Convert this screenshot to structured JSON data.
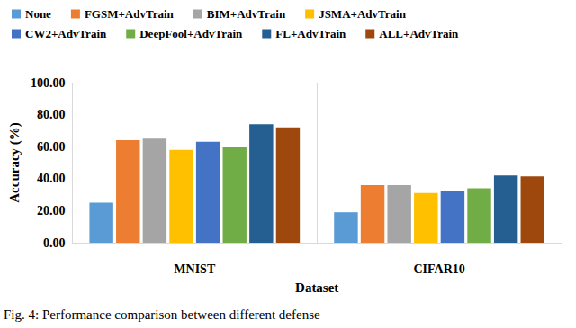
{
  "chart_data": {
    "type": "bar",
    "xlabel": "Dataset",
    "ylabel": "Accuracy (%)",
    "categories": [
      "MNIST",
      "CIFAR10"
    ],
    "series": [
      {
        "name": "None",
        "color": "#5B9BD5",
        "values": [
          25,
          19
        ]
      },
      {
        "name": "FGSM+AdvTrain",
        "color": "#ED7D31",
        "values": [
          64,
          36
        ]
      },
      {
        "name": "BIM+AdvTrain",
        "color": "#A5A5A5",
        "values": [
          65,
          36
        ]
      },
      {
        "name": "JSMA+AdvTrain",
        "color": "#FFC000",
        "values": [
          58,
          31
        ]
      },
      {
        "name": "CW2+AdvTrain",
        "color": "#4472C4",
        "values": [
          63,
          32
        ]
      },
      {
        "name": "DeepFool+AdvTrain",
        "color": "#70AD47",
        "values": [
          59.5,
          34
        ]
      },
      {
        "name": "FL+AdvTrain",
        "color": "#255E91",
        "values": [
          74,
          42
        ]
      },
      {
        "name": "ALL+AdvTrain",
        "color": "#9E480E",
        "values": [
          72,
          41.5
        ]
      }
    ],
    "ylim": [
      0,
      100
    ],
    "yticks": [
      {
        "value": 0,
        "label": "0.00"
      },
      {
        "value": 20,
        "label": "20.00"
      },
      {
        "value": 40,
        "label": "40.00"
      },
      {
        "value": 60,
        "label": "60.00"
      },
      {
        "value": 80,
        "label": "80.00"
      },
      {
        "value": 100,
        "label": "100.00"
      }
    ],
    "grid": false,
    "legend": "top",
    "annotations": [
      "Fig. 4: Performance comparison between different defense"
    ]
  }
}
